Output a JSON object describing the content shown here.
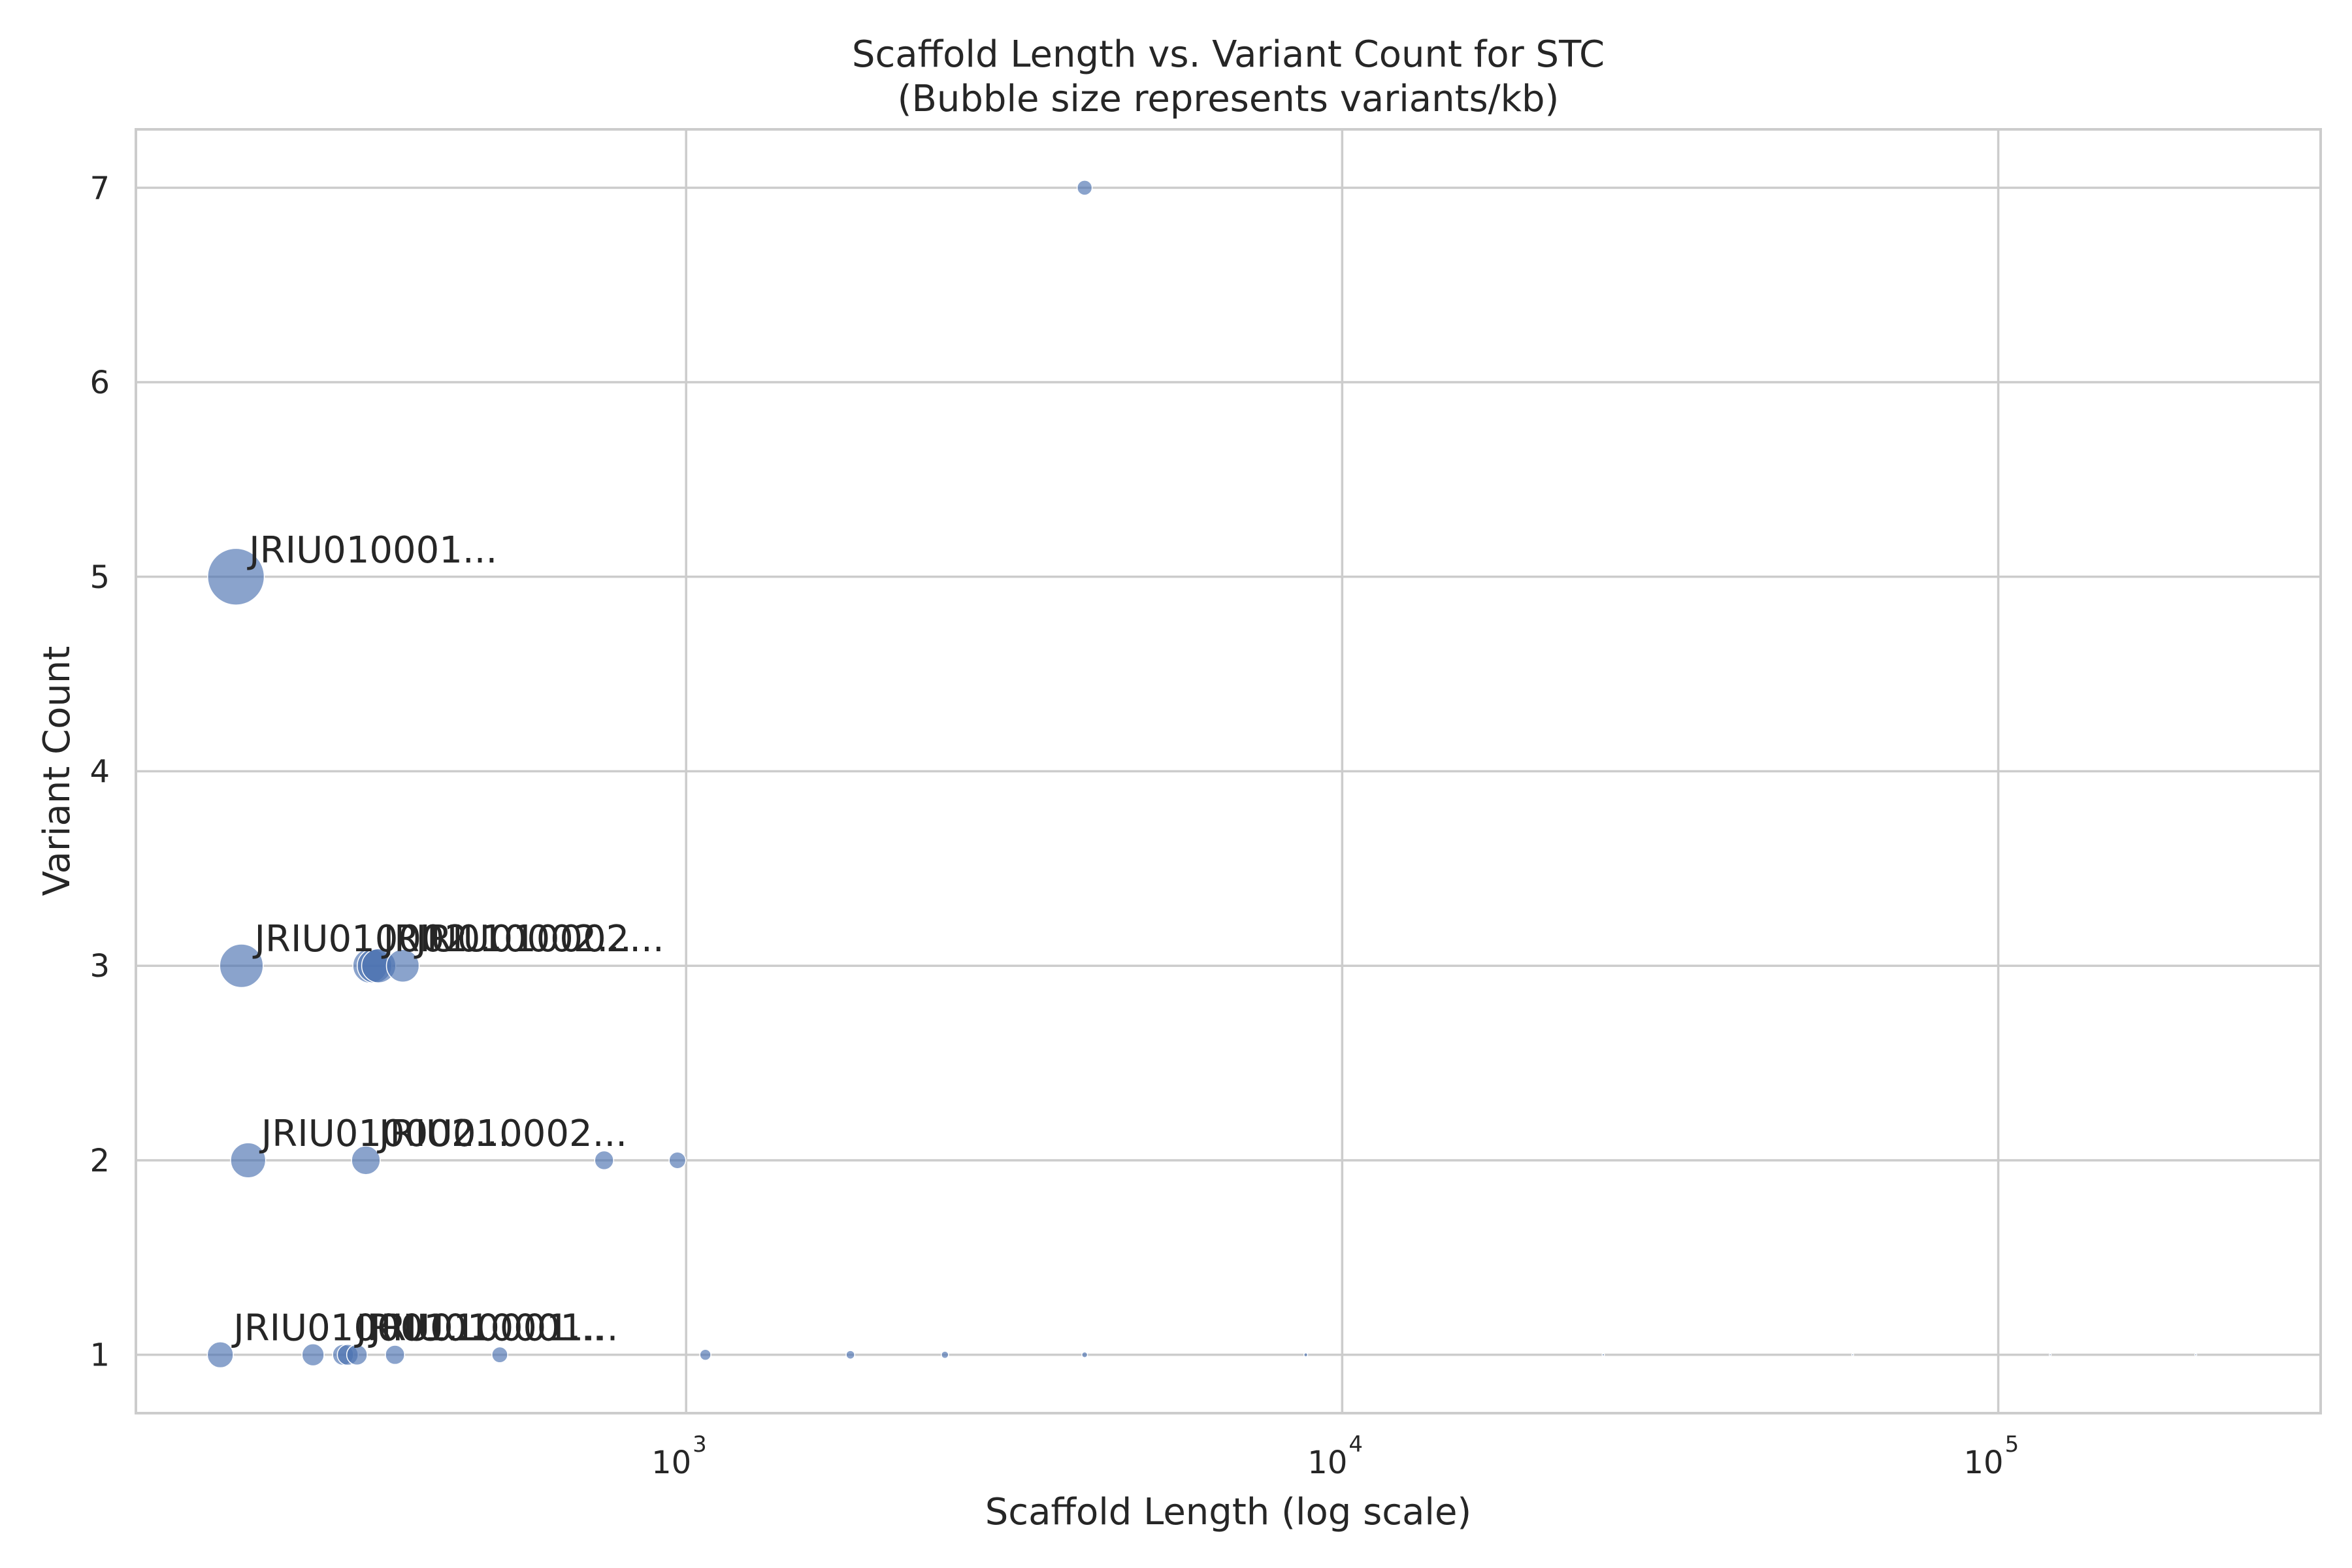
{
  "chart_data": {
    "type": "scatter",
    "title": "Scaffold Length vs. Variant Count for STC",
    "subtitle": "(Bubble size represents variants/kb)",
    "xlabel": "Scaffold Length (log scale)",
    "ylabel": "Variant Count",
    "x_scale": "log",
    "xlim": [
      145,
      310000
    ],
    "ylim": [
      0.7,
      7.3
    ],
    "x_ticks": [
      {
        "value": 1000,
        "base": "10",
        "exp": "3"
      },
      {
        "value": 10000,
        "base": "10",
        "exp": "4"
      },
      {
        "value": 100000,
        "base": "10",
        "exp": "5"
      }
    ],
    "y_ticks": [
      1,
      2,
      3,
      4,
      5,
      6,
      7
    ],
    "grid": true,
    "color": "#4c72b0",
    "size_encoding": "variants/kb",
    "points": [
      {
        "x": 206,
        "y": 5,
        "variants_per_kb": 24.3
      },
      {
        "x": 4050,
        "y": 7,
        "variants_per_kb": 1.7
      },
      {
        "x": 210,
        "y": 3,
        "variants_per_kb": 14.3
      },
      {
        "x": 330,
        "y": 3,
        "variants_per_kb": 9.1
      },
      {
        "x": 335,
        "y": 3,
        "variants_per_kb": 9.0
      },
      {
        "x": 340,
        "y": 3,
        "variants_per_kb": 8.8
      },
      {
        "x": 370,
        "y": 3,
        "variants_per_kb": 8.1
      },
      {
        "x": 215,
        "y": 2,
        "variants_per_kb": 9.3
      },
      {
        "x": 325,
        "y": 2,
        "variants_per_kb": 6.2
      },
      {
        "x": 750,
        "y": 2,
        "variants_per_kb": 2.7
      },
      {
        "x": 970,
        "y": 2,
        "variants_per_kb": 2.1
      },
      {
        "x": 195,
        "y": 1,
        "variants_per_kb": 5.1
      },
      {
        "x": 270,
        "y": 1,
        "variants_per_kb": 3.7
      },
      {
        "x": 300,
        "y": 1,
        "variants_per_kb": 3.3
      },
      {
        "x": 305,
        "y": 1,
        "variants_per_kb": 3.3
      },
      {
        "x": 315,
        "y": 1,
        "variants_per_kb": 3.2
      },
      {
        "x": 360,
        "y": 1,
        "variants_per_kb": 2.8
      },
      {
        "x": 520,
        "y": 1,
        "variants_per_kb": 1.9
      },
      {
        "x": 1070,
        "y": 1,
        "variants_per_kb": 0.93
      },
      {
        "x": 1780,
        "y": 1,
        "variants_per_kb": 0.56
      },
      {
        "x": 2480,
        "y": 1,
        "variants_per_kb": 0.4
      },
      {
        "x": 4050,
        "y": 1,
        "variants_per_kb": 0.25
      },
      {
        "x": 8800,
        "y": 1,
        "variants_per_kb": 0.11
      },
      {
        "x": 25000,
        "y": 1,
        "variants_per_kb": 0.04
      },
      {
        "x": 60000,
        "y": 1,
        "variants_per_kb": 0.017
      },
      {
        "x": 120000,
        "y": 1,
        "variants_per_kb": 0.008
      },
      {
        "x": 200000,
        "y": 1,
        "variants_per_kb": 0.005
      }
    ],
    "annotations": [
      {
        "text": "JRIU010001...",
        "x": 206,
        "y": 5
      },
      {
        "text": "JRIU010002...",
        "x": 210,
        "y": 3
      },
      {
        "text": "JRIU010002...",
        "x": 330,
        "y": 3
      },
      {
        "text": "JRIU010002...",
        "x": 370,
        "y": 3
      },
      {
        "text": "JRIU010002...",
        "x": 215,
        "y": 2
      },
      {
        "text": "JRIU010002...",
        "x": 325,
        "y": 2
      },
      {
        "text": "JRIU010001...",
        "x": 195,
        "y": 1
      },
      {
        "text": "JRIU010001...",
        "x": 300,
        "y": 1
      },
      {
        "text": "JRIU010001...",
        "x": 315,
        "y": 1
      }
    ]
  }
}
